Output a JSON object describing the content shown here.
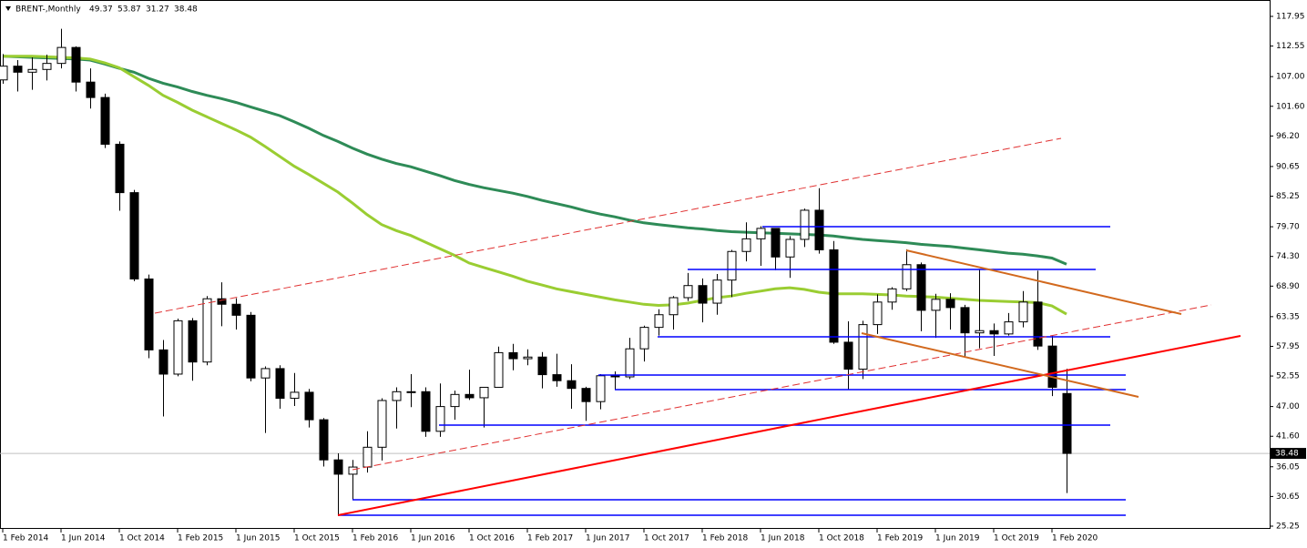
{
  "chart_data": {
    "type": "candlestick",
    "title": "BRENT-,Monthly",
    "header_ohlc": [
      49.37,
      53.87,
      31.27,
      38.48
    ],
    "last_price": 38.48,
    "categories": [
      "1 Feb 2014",
      null,
      null,
      null,
      "1 Jun 2014",
      null,
      null,
      null,
      "1 Oct 2014",
      null,
      null,
      null,
      "1 Feb 2015",
      null,
      null,
      null,
      "1 Jun 2015",
      null,
      null,
      null,
      "1 Oct 2015",
      null,
      null,
      null,
      "1 Feb 2016",
      null,
      null,
      null,
      "1 Jun 2016",
      null,
      null,
      null,
      "1 Oct 2016",
      null,
      null,
      null,
      "1 Feb 2017",
      null,
      null,
      null,
      "1 Jun 2017",
      null,
      null,
      null,
      "1 Oct 2017",
      null,
      null,
      null,
      "1 Feb 2018",
      null,
      null,
      null,
      "1 Jun 2018",
      null,
      null,
      null,
      "1 Oct 2018",
      null,
      null,
      null,
      "1 Feb 2019",
      null,
      null,
      null,
      "1 Jun 2019",
      null,
      null,
      null,
      "1 Oct 2019",
      null,
      null,
      null,
      "1 Feb 2020",
      null
    ],
    "open": [
      106.4,
      108.9,
      107.8,
      108.3,
      109.4,
      112.3,
      106.0,
      103.2,
      94.7,
      85.9,
      70.2,
      57.3,
      52.9,
      62.6,
      55.1,
      66.6,
      65.6,
      63.6,
      52.2,
      53.9,
      48.5,
      49.6,
      44.6,
      37.3,
      34.7,
      36.0,
      39.6,
      48.1,
      49.7,
      49.7,
      42.5,
      47.0,
      49.2,
      48.6,
      50.5,
      56.8,
      55.7,
      56.0,
      52.8,
      51.7,
      50.3,
      47.9,
      52.6,
      52.4,
      57.5,
      61.4,
      63.7,
      66.8,
      69.0,
      65.8,
      70.0,
      75.2,
      77.5,
      79.4,
      74.2,
      77.4,
      82.7,
      75.5,
      58.7,
      53.8,
      61.9,
      66.0,
      68.4,
      72.8,
      64.5,
      66.5,
      65.0,
      60.4,
      60.8,
      60.2,
      62.4,
      66.0,
      58.0,
      49.37
    ],
    "high": [
      111.1,
      110.0,
      110.5,
      111.0,
      115.7,
      112.5,
      108.5,
      103.9,
      95.2,
      86.4,
      71.0,
      59.1,
      63.0,
      63.1,
      67.1,
      69.6,
      66.7,
      64.2,
      54.3,
      54.5,
      53.1,
      50.2,
      44.9,
      38.5,
      37.3,
      42.5,
      48.5,
      50.5,
      52.9,
      50.5,
      51.2,
      49.9,
      53.7,
      50.2,
      57.9,
      58.4,
      57.4,
      56.9,
      56.6,
      54.7,
      50.6,
      52.9,
      53.4,
      59.5,
      61.7,
      64.7,
      67.1,
      71.3,
      70.3,
      71.1,
      75.5,
      80.5,
      79.8,
      79.4,
      78.0,
      83.0,
      86.7,
      77.1,
      62.5,
      62.6,
      67.4,
      68.7,
      75.6,
      73.2,
      67.5,
      67.6,
      65.5,
      71.9,
      62.1,
      64.0,
      68.0,
      71.7,
      59.9,
      53.87
    ],
    "low": [
      105.7,
      104.3,
      104.6,
      106.3,
      108.5,
      104.3,
      101.2,
      94.0,
      82.6,
      69.8,
      55.8,
      45.2,
      52.5,
      51.7,
      54.5,
      61.6,
      61.0,
      51.6,
      42.2,
      46.6,
      47.1,
      43.2,
      36.1,
      27.1,
      30.0,
      35.0,
      37.2,
      43.0,
      46.9,
      41.5,
      41.5,
      44.6,
      48.2,
      43.2,
      50.5,
      53.6,
      54.5,
      50.3,
      50.6,
      46.6,
      44.4,
      46.5,
      50.1,
      52.0,
      55.2,
      59.9,
      61.0,
      66.2,
      62.3,
      63.7,
      66.9,
      73.4,
      72.6,
      71.8,
      70.4,
      76.0,
      74.8,
      58.4,
      50.0,
      52.0,
      60.2,
      64.6,
      68.0,
      60.7,
      59.5,
      61.0,
      55.9,
      57.6,
      56.2,
      59.9,
      61.4,
      57.3,
      48.9,
      31.27
    ],
    "close": [
      108.9,
      107.8,
      108.3,
      109.4,
      112.3,
      106.0,
      103.2,
      94.7,
      85.9,
      70.2,
      57.3,
      52.9,
      62.6,
      55.1,
      66.6,
      65.6,
      63.6,
      52.2,
      53.9,
      48.5,
      49.6,
      44.6,
      37.3,
      34.7,
      36.0,
      39.6,
      48.1,
      49.7,
      49.7,
      42.5,
      47.0,
      49.2,
      48.6,
      50.5,
      56.8,
      55.7,
      56.0,
      52.8,
      51.7,
      50.3,
      47.9,
      52.6,
      52.4,
      57.5,
      61.4,
      63.7,
      66.8,
      69.0,
      65.8,
      70.0,
      75.2,
      77.5,
      79.4,
      74.2,
      77.4,
      82.7,
      75.5,
      58.7,
      53.8,
      61.9,
      66.0,
      68.4,
      72.8,
      64.5,
      66.5,
      65.0,
      60.4,
      60.8,
      60.2,
      62.4,
      66.0,
      58.0,
      50.5,
      38.48
    ],
    "up_color": "#ffffff",
    "down_color": "#000000",
    "series": [
      {
        "color": "#2e8b57",
        "values": [
          110.7,
          110.6,
          110.5,
          110.4,
          110.3,
          110.2,
          110.0,
          109.3,
          108.5,
          107.8,
          106.7,
          105.8,
          105.1,
          104.3,
          103.6,
          103.0,
          102.3,
          101.5,
          100.7,
          99.9,
          98.8,
          97.6,
          96.3,
          95.2,
          94.0,
          92.9,
          92.0,
          91.2,
          90.6,
          89.8,
          89.0,
          88.1,
          87.4,
          86.8,
          86.3,
          85.8,
          85.2,
          84.5,
          83.9,
          83.3,
          82.6,
          82.0,
          81.5,
          80.9,
          80.4,
          80.1,
          79.8,
          79.5,
          79.3,
          79.0,
          78.8,
          78.7,
          78.6,
          78.5,
          78.4,
          78.3,
          78.2,
          78.0,
          77.7,
          77.4,
          77.2,
          77.0,
          76.8,
          76.5,
          76.3,
          76.1,
          75.8,
          75.5,
          75.2,
          74.9,
          74.7,
          74.4,
          74.0,
          72.9
        ]
      },
      {
        "color": "#9acd32",
        "values": [
          110.7,
          110.7,
          110.7,
          110.6,
          110.5,
          110.4,
          110.2,
          109.5,
          108.6,
          107.0,
          105.4,
          103.6,
          102.3,
          100.9,
          99.7,
          98.5,
          97.3,
          96.0,
          94.3,
          92.5,
          90.7,
          89.2,
          87.6,
          86.0,
          84.0,
          81.9,
          80.1,
          79.0,
          78.1,
          76.9,
          75.7,
          74.5,
          73.1,
          72.3,
          71.5,
          70.7,
          69.8,
          69.1,
          68.4,
          67.9,
          67.4,
          66.9,
          66.4,
          66.0,
          65.6,
          65.4,
          65.5,
          65.8,
          66.3,
          66.8,
          67.1,
          67.6,
          68.0,
          68.4,
          68.6,
          68.3,
          67.8,
          67.5,
          67.5,
          67.5,
          67.4,
          67.3,
          67.1,
          67.0,
          66.9,
          66.7,
          66.5,
          66.3,
          66.2,
          66.1,
          66.0,
          65.9,
          65.3,
          63.8
        ]
      }
    ],
    "levels": [
      79.71,
      71.93,
      59.68,
      52.73,
      50.08,
      43.62,
      30.05,
      27.24
    ],
    "level_color": "#0000ff",
    "trendlines": [
      {
        "values": [
          27.24,
          59.85
        ],
        "color": "#ff0000",
        "dashed": false
      },
      {
        "values": [
          63.99,
          95.77
        ],
        "color": "#e03030",
        "dashed": true
      },
      {
        "values": [
          35.51,
          65.48
        ],
        "color": "#e03030",
        "dashed": true
      },
      {
        "values": [
          75.41,
          63.82
        ],
        "color": "#d2691e",
        "dashed": false
      },
      {
        "values": [
          60.34,
          48.76
        ],
        "color": "#d2691e",
        "dashed": false
      }
    ],
    "ylim": [
      24.92,
      120.93
    ],
    "yticks": [
      117.95,
      112.55,
      {
        "value": 107,
        "label": "107.00"
      },
      {
        "value": 101.6,
        "label": "101.60"
      },
      {
        "value": 96.2,
        "label": "96.20"
      },
      90.65,
      85.25,
      {
        "value": 79.7,
        "label": "79.70"
      },
      {
        "value": 74.3,
        "label": "74.30"
      },
      {
        "value": 68.9,
        "label": "68.90"
      },
      63.35,
      57.95,
      52.55,
      {
        "value": 47,
        "label": "47.00"
      },
      {
        "value": 41.6,
        "label": "41.60"
      },
      36.05,
      30.65,
      25.25
    ]
  }
}
